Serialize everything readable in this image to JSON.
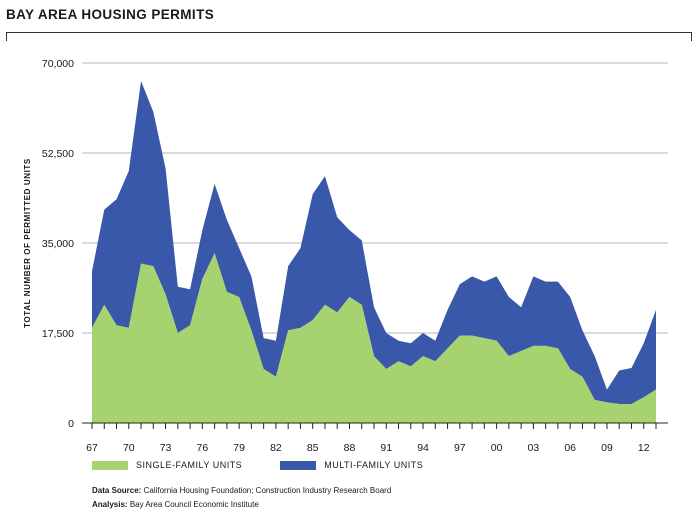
{
  "chart_data": {
    "type": "area",
    "title": "BAY AREA HOUSING PERMITS",
    "ylabel": "TOTAL NUMBER OF PERMITTED UNITS",
    "xlabel": "",
    "ylim": [
      0,
      70000
    ],
    "xlim": [
      1967,
      2013
    ],
    "stacked": true,
    "yticks": [
      0,
      17500,
      35000,
      52500,
      70000
    ],
    "ytick_labels": [
      "0",
      "17,500",
      "35,000",
      "52,500",
      "70,000"
    ],
    "xticks": [
      1967,
      1970,
      1973,
      1976,
      1979,
      1982,
      1985,
      1988,
      1991,
      1994,
      1997,
      2000,
      2003,
      2006,
      2009,
      2012
    ],
    "xtick_labels": [
      "67",
      "70",
      "73",
      "76",
      "79",
      "82",
      "85",
      "88",
      "91",
      "94",
      "97",
      "00",
      "03",
      "06",
      "09",
      "12"
    ],
    "grid": "horizontal",
    "x": [
      1967,
      1968,
      1969,
      1970,
      1971,
      1972,
      1973,
      1974,
      1975,
      1976,
      1977,
      1978,
      1979,
      1980,
      1981,
      1982,
      1983,
      1984,
      1985,
      1986,
      1987,
      1988,
      1989,
      1990,
      1991,
      1992,
      1993,
      1994,
      1995,
      1996,
      1997,
      1998,
      1999,
      2000,
      2001,
      2002,
      2003,
      2004,
      2005,
      2006,
      2007,
      2008,
      2009,
      2010,
      2011,
      2012,
      2013
    ],
    "series": [
      {
        "name": "SINGLE-FAMILY UNITS",
        "color": "#a6d270",
        "values": [
          18500,
          23000,
          19000,
          18500,
          31000,
          30500,
          25000,
          17500,
          19000,
          28000,
          33000,
          25500,
          24500,
          18000,
          10500,
          9000,
          18000,
          18500,
          20000,
          23000,
          21500,
          24500,
          23000,
          13000,
          10500,
          12000,
          11000,
          13000,
          12000,
          14500,
          17000,
          17000,
          16500,
          16000,
          13000,
          14000,
          15000,
          15000,
          14500,
          10500,
          9000,
          4500,
          4000,
          3700,
          3700,
          5000,
          6500
        ]
      },
      {
        "name": "MULTI-FAMILY UNITS",
        "color": "#3a58aa",
        "values": [
          11000,
          18500,
          24500,
          30500,
          35500,
          30000,
          24500,
          9000,
          7000,
          9500,
          13500,
          14000,
          9500,
          10500,
          6000,
          7000,
          12500,
          15500,
          24500,
          25000,
          18500,
          13000,
          12500,
          9500,
          7000,
          4000,
          4500,
          4500,
          4000,
          7500,
          10000,
          11500,
          11000,
          12500,
          11500,
          8500,
          13500,
          12500,
          13000,
          14000,
          9000,
          8500,
          2500,
          6500,
          7000,
          10500,
          15500
        ]
      }
    ],
    "legend_position": "bottom-left"
  },
  "footer": {
    "source_label": "Data Source:",
    "source_text": "California Housing Foundation; Construction Industry Research Board",
    "analysis_label": "Analysis:",
    "analysis_text": "Bay Area Council Economic Institute"
  }
}
